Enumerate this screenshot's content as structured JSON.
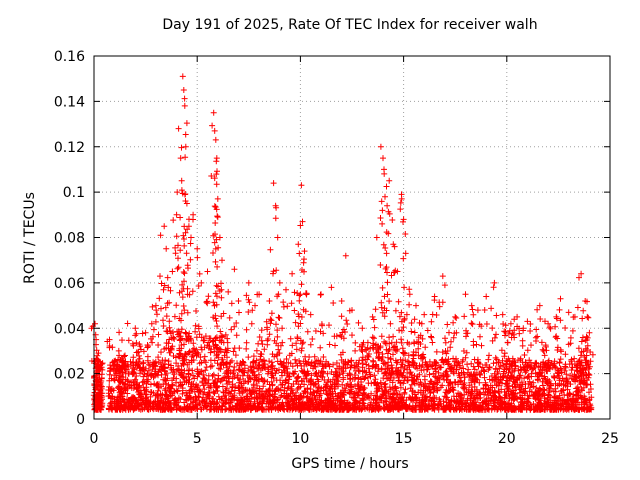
{
  "chart_data": {
    "type": "scatter",
    "title": "Day 191 of 2025, Rate Of TEC Index for receiver walh",
    "xlabel": "GPS time / hours",
    "ylabel": "ROTI / TECUs",
    "xlim": [
      0,
      25
    ],
    "ylim": [
      0,
      0.16
    ],
    "xticks": [
      0,
      5,
      10,
      15,
      20,
      25
    ],
    "xtick_labels": [
      "0",
      "5",
      "10",
      "15",
      "20",
      "25"
    ],
    "yticks": [
      0,
      0.02,
      0.04,
      0.06,
      0.08,
      0.1,
      0.12,
      0.14,
      0.16
    ],
    "ytick_labels": [
      "0",
      "0.02",
      "0.04",
      "0.06",
      "0.08",
      "0.1",
      "0.12",
      "0.14",
      "0.16"
    ],
    "grid": true,
    "marker": "+",
    "colors": {
      "points": "#ff0000",
      "grid": "#a0a0a0",
      "axes": "#000000"
    },
    "series": [
      {
        "name": "ROTI",
        "points": [
          [
            0.05,
            0.042
          ],
          [
            0.1,
            0.035
          ],
          [
            0.1,
            0.01
          ],
          [
            0.15,
            0.015
          ],
          [
            0.2,
            0.008
          ],
          [
            0.3,
            0.025
          ],
          [
            0.75,
            0.035
          ],
          [
            0.9,
            0.025
          ],
          [
            1.2,
            0.03
          ],
          [
            1.5,
            0.028
          ],
          [
            2.0,
            0.04
          ],
          [
            2.2,
            0.033
          ],
          [
            2.5,
            0.038
          ],
          [
            2.8,
            0.042
          ],
          [
            3.0,
            0.05
          ],
          [
            3.2,
            0.063
          ],
          [
            3.4,
            0.085
          ],
          [
            3.5,
            0.075
          ],
          [
            3.6,
            0.058
          ],
          [
            3.8,
            0.065
          ],
          [
            4.0,
            0.09
          ],
          [
            4.1,
            0.128
          ],
          [
            4.2,
            0.115
          ],
          [
            4.25,
            0.105
          ],
          [
            4.3,
            0.151
          ],
          [
            4.35,
            0.145
          ],
          [
            4.4,
            0.138
          ],
          [
            4.45,
            0.12
          ],
          [
            4.5,
            0.095
          ],
          [
            4.6,
            0.085
          ],
          [
            4.7,
            0.08
          ],
          [
            4.8,
            0.09
          ],
          [
            5.0,
            0.075
          ],
          [
            5.2,
            0.06
          ],
          [
            5.5,
            0.065
          ],
          [
            5.8,
            0.135
          ],
          [
            5.85,
            0.127
          ],
          [
            5.9,
            0.123
          ],
          [
            5.95,
            0.115
          ],
          [
            6.0,
            0.097
          ],
          [
            6.0,
            0.089
          ],
          [
            6.1,
            0.08
          ],
          [
            6.2,
            0.07
          ],
          [
            6.5,
            0.056
          ],
          [
            6.8,
            0.066
          ],
          [
            7.0,
            0.052
          ],
          [
            7.5,
            0.06
          ],
          [
            7.8,
            0.05
          ],
          [
            8.0,
            0.055
          ],
          [
            8.5,
            0.052
          ],
          [
            8.7,
            0.104
          ],
          [
            8.8,
            0.094
          ],
          [
            8.9,
            0.08
          ],
          [
            9.0,
            0.06
          ],
          [
            9.3,
            0.057
          ],
          [
            9.6,
            0.064
          ],
          [
            9.9,
            0.077
          ],
          [
            10.0,
            0.055
          ],
          [
            10.05,
            0.103
          ],
          [
            10.1,
            0.087
          ],
          [
            10.2,
            0.074
          ],
          [
            10.5,
            0.046
          ],
          [
            11.0,
            0.055
          ],
          [
            11.5,
            0.058
          ],
          [
            12.0,
            0.052
          ],
          [
            12.2,
            0.072
          ],
          [
            12.5,
            0.048
          ],
          [
            13.0,
            0.04
          ],
          [
            13.5,
            0.045
          ],
          [
            13.7,
            0.08
          ],
          [
            13.9,
            0.12
          ],
          [
            14.0,
            0.115
          ],
          [
            14.05,
            0.11
          ],
          [
            14.1,
            0.098
          ],
          [
            14.2,
            0.094
          ],
          [
            14.3,
            0.105
          ],
          [
            14.5,
            0.077
          ],
          [
            14.7,
            0.065
          ],
          [
            14.9,
            0.099
          ],
          [
            15.0,
            0.088
          ],
          [
            15.1,
            0.073
          ],
          [
            15.3,
            0.055
          ],
          [
            15.6,
            0.05
          ],
          [
            16.0,
            0.046
          ],
          [
            16.5,
            0.054
          ],
          [
            16.9,
            0.063
          ],
          [
            17.0,
            0.059
          ],
          [
            17.5,
            0.045
          ],
          [
            18.0,
            0.055
          ],
          [
            18.3,
            0.05
          ],
          [
            18.6,
            0.048
          ],
          [
            19.0,
            0.054
          ],
          [
            19.4,
            0.06
          ],
          [
            19.8,
            0.046
          ],
          [
            20.2,
            0.042
          ],
          [
            20.5,
            0.045
          ],
          [
            20.8,
            0.04
          ],
          [
            21.0,
            0.043
          ],
          [
            21.6,
            0.05
          ],
          [
            22.0,
            0.042
          ],
          [
            22.4,
            0.045
          ],
          [
            22.6,
            0.053
          ],
          [
            23.0,
            0.047
          ],
          [
            23.3,
            0.045
          ],
          [
            23.6,
            0.064
          ],
          [
            23.8,
            0.052
          ],
          [
            23.9,
            0.045
          ],
          [
            24.0,
            0.038
          ]
        ]
      }
    ]
  }
}
